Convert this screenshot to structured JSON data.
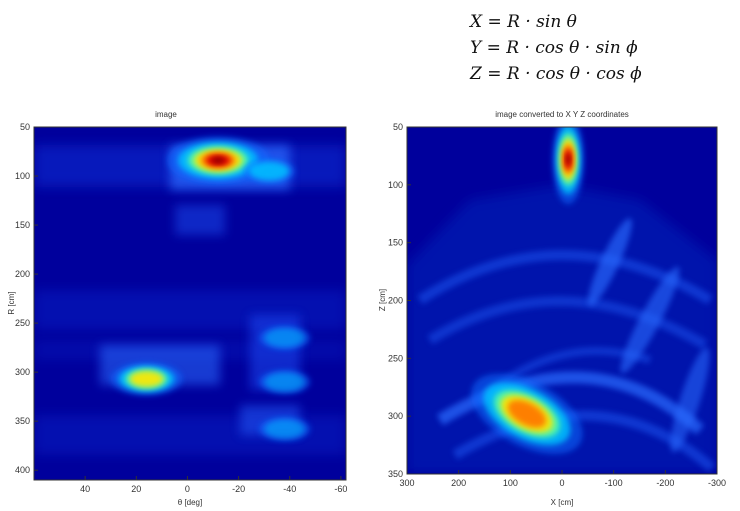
{
  "equations": {
    "x": "X = R · sin θ",
    "y": "Y = R · cos θ · sin ϕ",
    "z": "Z = R · cos θ · cos ϕ"
  },
  "colors": {
    "background": "#00009c",
    "colormap": "jet"
  },
  "chart_data": [
    {
      "type": "heatmap",
      "title": "image",
      "xlabel": "θ [deg]",
      "ylabel": "R [cm]",
      "xlim": [
        60,
        -62
      ],
      "ylim": [
        50,
        410
      ],
      "x_ticks": [
        40,
        20,
        0,
        -20,
        -40,
        -60
      ],
      "y_ticks": [
        50,
        100,
        150,
        200,
        250,
        300,
        350,
        400
      ],
      "hotspots": [
        {
          "x": -12,
          "y": 84,
          "intensity": 1.0
        },
        {
          "x": -32,
          "y": 95,
          "intensity": 0.4
        },
        {
          "x": 16,
          "y": 307,
          "intensity": 0.7
        },
        {
          "x": -38,
          "y": 358,
          "intensity": 0.3
        },
        {
          "x": -38,
          "y": 310,
          "intensity": 0.25
        },
        {
          "x": -38,
          "y": 265,
          "intensity": 0.2
        }
      ]
    },
    {
      "type": "heatmap",
      "title": "image converted to X Y Z coordinates",
      "xlabel": "X [cm]",
      "ylabel": "Z [cm]",
      "xlim": [
        300,
        -300
      ],
      "ylim": [
        50,
        350
      ],
      "x_ticks": [
        300,
        200,
        100,
        0,
        -100,
        -200,
        -300
      ],
      "y_ticks": [
        50,
        100,
        150,
        200,
        250,
        300,
        350
      ],
      "hotspots": [
        {
          "x": -12,
          "y": 78,
          "intensity": 1.0
        },
        {
          "x": 68,
          "y": 298,
          "intensity": 0.85
        }
      ]
    }
  ]
}
